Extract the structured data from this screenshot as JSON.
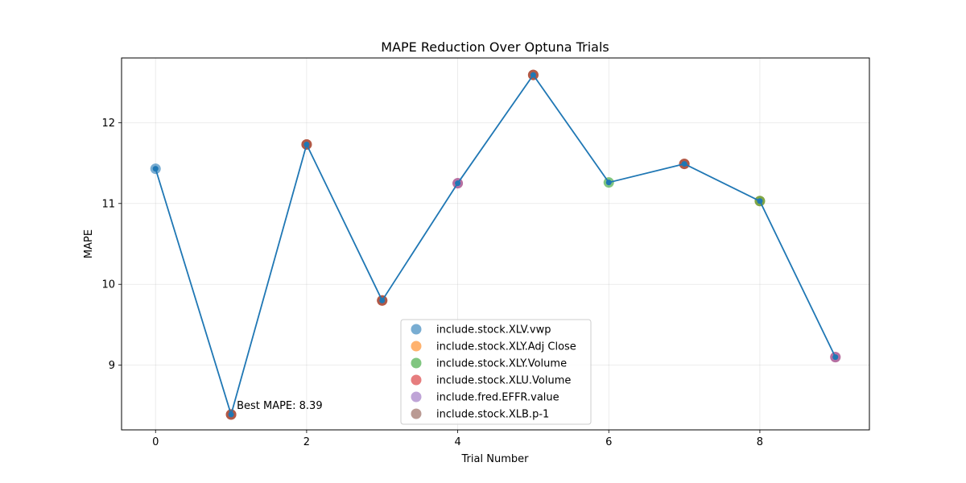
{
  "chart_data": {
    "type": "line",
    "title": "MAPE Reduction Over Optuna Trials",
    "xlabel": "Trial Number",
    "ylabel": "MAPE",
    "xlim": [
      -0.45,
      9.45
    ],
    "ylim": [
      8.2,
      12.8
    ],
    "xticks": [
      0,
      2,
      4,
      6,
      8
    ],
    "yticks": [
      9,
      10,
      11,
      12
    ],
    "grid": true,
    "legend_position": "lower center",
    "line_color": "#1f77b4",
    "x": [
      0,
      1,
      2,
      3,
      4,
      5,
      6,
      7,
      8,
      9
    ],
    "y": [
      11.43,
      8.39,
      11.73,
      9.8,
      11.25,
      12.59,
      11.26,
      11.49,
      11.03,
      9.1
    ],
    "series": [
      {
        "name": "include.stock.XLV.vwp",
        "color": "#1f77b4",
        "points": [
          [
            0,
            11.43
          ]
        ]
      },
      {
        "name": "include.stock.XLY.Adj Close",
        "color": "#ff7f0e",
        "points": [
          [
            1,
            8.39
          ],
          [
            2,
            11.73
          ],
          [
            3,
            9.8
          ],
          [
            5,
            12.59
          ],
          [
            7,
            11.49
          ],
          [
            8,
            11.03
          ]
        ]
      },
      {
        "name": "include.stock.XLY.Volume",
        "color": "#2ca02c",
        "points": [
          [
            6,
            11.26
          ],
          [
            8,
            11.03
          ]
        ]
      },
      {
        "name": "include.stock.XLU.Volume",
        "color": "#d62728",
        "points": [
          [
            1,
            8.39
          ],
          [
            2,
            11.73
          ],
          [
            3,
            9.8
          ],
          [
            4,
            11.25
          ],
          [
            5,
            12.59
          ],
          [
            7,
            11.49
          ],
          [
            9,
            9.1
          ]
        ]
      },
      {
        "name": "include.fred.EFFR.value",
        "color": "#9467bd",
        "points": [
          [
            4,
            11.25
          ],
          [
            9,
            9.1
          ]
        ]
      },
      {
        "name": "include.stock.XLB.p-1",
        "color": "#8c564b",
        "points": [
          [
            1,
            8.39
          ],
          [
            2,
            11.73
          ],
          [
            3,
            9.8
          ],
          [
            5,
            12.59
          ],
          [
            7,
            11.49
          ]
        ]
      }
    ],
    "annotations": [
      {
        "text": "Best MAPE: 8.39",
        "x": 1,
        "y": 8.39
      }
    ]
  }
}
